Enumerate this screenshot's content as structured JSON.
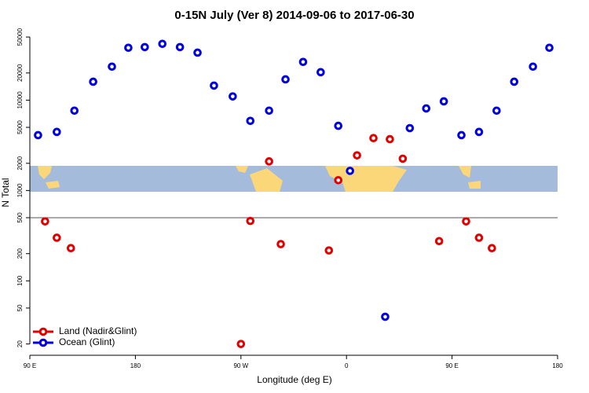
{
  "chart_data": {
    "type": "scatter",
    "title": "0-15N July (Ver 8)   2014-09-06 to 2017-06-30",
    "x_label": "Longitude (deg E)",
    "y_label": "N Total",
    "log_y": true,
    "xlim": [
      90,
      540
    ],
    "ylim": [
      15,
      60000
    ],
    "xticks": [
      {
        "value": 90,
        "label": "90 E"
      },
      {
        "value": 180,
        "label": "180"
      },
      {
        "value": 270,
        "label": "90 W"
      },
      {
        "value": 360,
        "label": "0"
      },
      {
        "value": 450,
        "label": "90 E"
      },
      {
        "value": 540,
        "label": "180"
      }
    ],
    "yticks": [
      20,
      50,
      100,
      200,
      500,
      1000,
      2000,
      5000,
      10000,
      20000,
      50000
    ],
    "hline": 500,
    "legend": "bottom-left",
    "series": [
      {
        "name": "Land (Nadir&Glint)",
        "color": "#e00000",
        "x": [
          103,
          113,
          125,
          270,
          278,
          294,
          304,
          345,
          353,
          369,
          383,
          397,
          408,
          439,
          462,
          473,
          484
        ],
        "values": [
          455,
          300,
          230,
          20,
          460,
          2100,
          255,
          217,
          1300,
          2450,
          3800,
          3700,
          2250,
          275,
          455,
          300,
          230
        ]
      },
      {
        "name": "Ocean (Glint)",
        "color": "#0000e0",
        "x": [
          97,
          113,
          128,
          144,
          160,
          174,
          188,
          203,
          218,
          233,
          247,
          263,
          278,
          294,
          308,
          323,
          338,
          353,
          363,
          393,
          414,
          428,
          443,
          458,
          473,
          488,
          503,
          519,
          533
        ],
        "values": [
          4100,
          4450,
          7650,
          16000,
          23500,
          38000,
          38700,
          42000,
          38700,
          33600,
          14500,
          11000,
          5900,
          7650,
          17000,
          26500,
          20400,
          5200,
          1650,
          40,
          4900,
          8100,
          9700,
          4100,
          4450,
          7650,
          16000,
          23500,
          38000
        ]
      }
    ]
  }
}
